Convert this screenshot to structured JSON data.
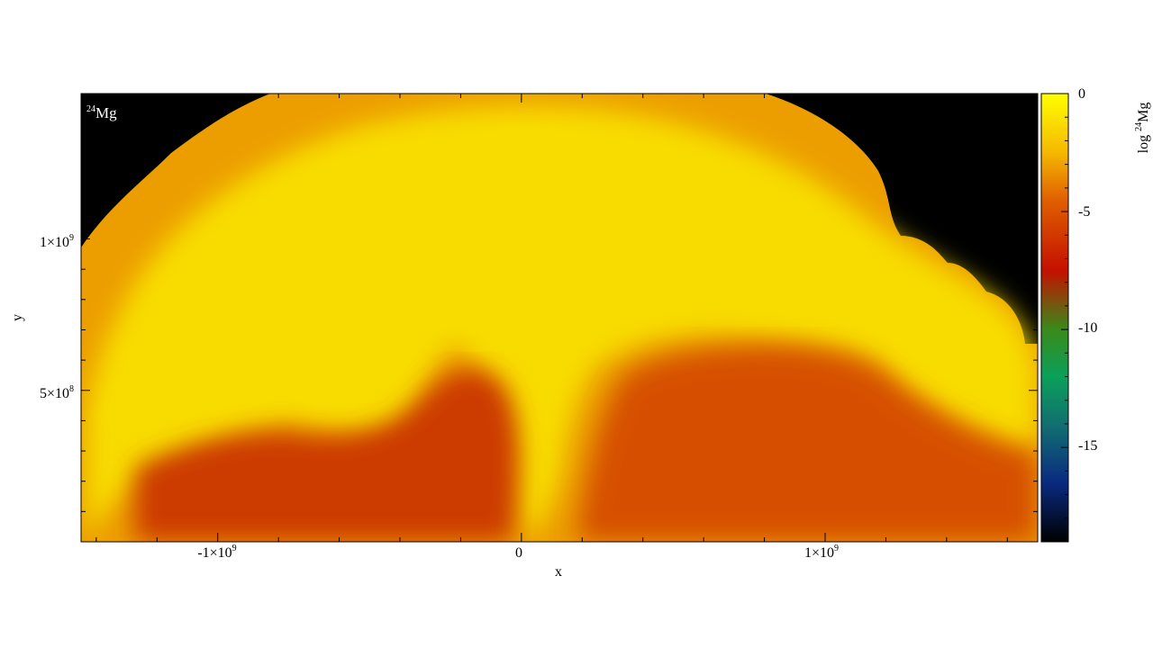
{
  "chart_data": {
    "type": "heatmap",
    "panel_label": {
      "sup": "24",
      "base": "Mg"
    },
    "xlabel": "x",
    "ylabel": "y",
    "xlim": [
      -1450000000.0,
      1700000000.0
    ],
    "ylim": [
      0,
      1480000000.0
    ],
    "x_ticks": [
      {
        "value": -1000000000.0,
        "mantissa": "-1×10",
        "exp": "9"
      },
      {
        "value": 0,
        "mantissa": "0",
        "exp": ""
      },
      {
        "value": 1000000000.0,
        "mantissa": "1×10",
        "exp": "9"
      }
    ],
    "y_ticks": [
      {
        "value": 500000000.0,
        "mantissa": "5×10",
        "exp": "8"
      },
      {
        "value": 1000000000.0,
        "mantissa": "1×10",
        "exp": "9"
      }
    ],
    "colorbar": {
      "label": {
        "prefix": "log ",
        "sup": "24",
        "base": "Mg"
      },
      "range": [
        -19,
        0
      ],
      "ticks": [
        0,
        -5,
        -10,
        -15
      ],
      "tick_labels": [
        "0",
        "-5",
        "-10",
        "-15"
      ],
      "colormap": [
        {
          "v": 0,
          "color": "#ffff00"
        },
        {
          "v": -2.5,
          "color": "#f5b800"
        },
        {
          "v": -4.5,
          "color": "#e06000"
        },
        {
          "v": -7.5,
          "color": "#c41000"
        },
        {
          "v": -10,
          "color": "#3a8a1a"
        },
        {
          "v": -12,
          "color": "#0aa05a"
        },
        {
          "v": -14,
          "color": "#127070"
        },
        {
          "v": -16.5,
          "color": "#0a2a80"
        },
        {
          "v": -19,
          "color": "#000000"
        }
      ]
    },
    "background_color": "#000000",
    "field_colors": {
      "bright": "#f8dc00",
      "mid": "#ec9e00",
      "low": "#d65006",
      "deep": "#cc3a00"
    }
  }
}
